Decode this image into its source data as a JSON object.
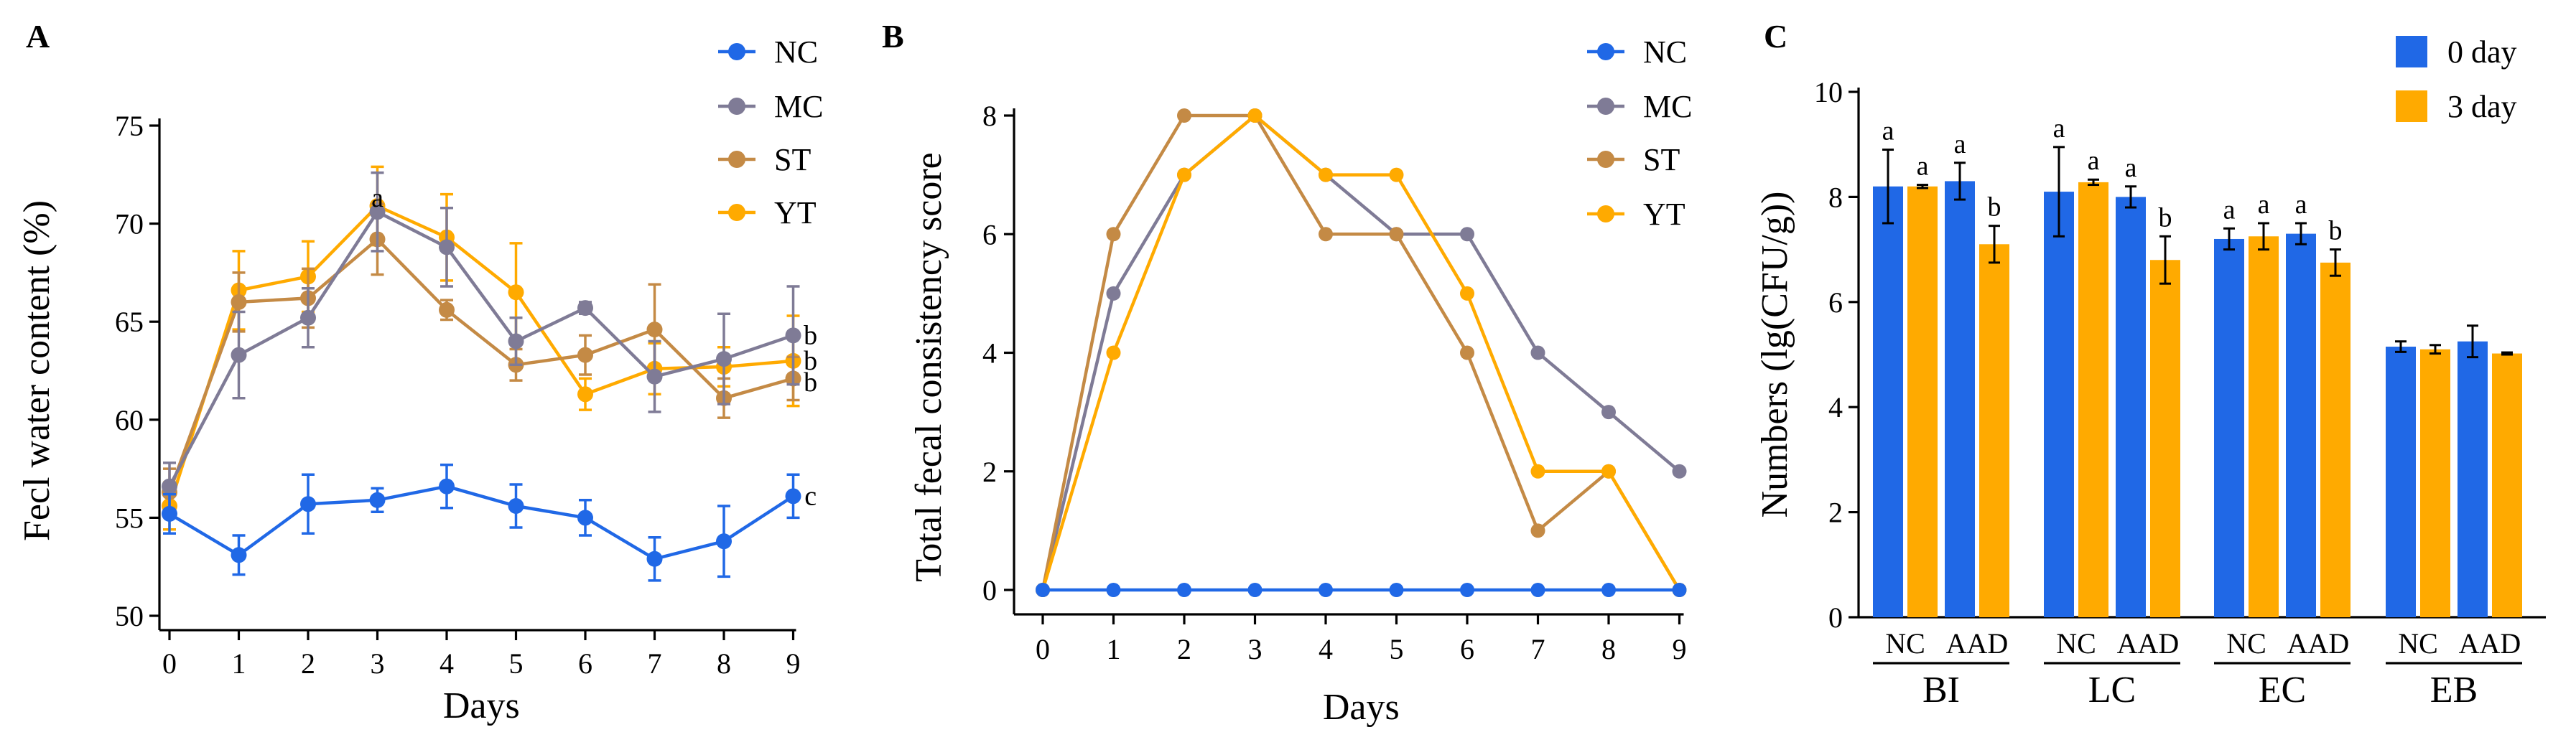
{
  "colors": {
    "NC": "#2068E6",
    "MC": "#7F7B96",
    "ST": "#C48A45",
    "YT": "#FFAA00",
    "bar0": "#2068E6",
    "bar3": "#FFAA00"
  },
  "chart_data": [
    {
      "panel": "A",
      "type": "line",
      "title": "",
      "xlabel": "Days",
      "ylabel": "Fecl water content (%)",
      "xlim": [
        0,
        9
      ],
      "ylim": [
        50,
        75
      ],
      "xticks": [
        0,
        1,
        2,
        3,
        4,
        5,
        6,
        7,
        8,
        9
      ],
      "yticks": [
        50,
        55,
        60,
        65,
        70,
        75
      ],
      "legend": [
        "NC",
        "MC",
        "ST",
        "YT"
      ],
      "series": [
        {
          "name": "YT",
          "color": "#FFAA00",
          "x": [
            0,
            1,
            2,
            3,
            4,
            5,
            6,
            7,
            8,
            9
          ],
          "values": [
            55.6,
            66.6,
            67.3,
            70.9,
            69.3,
            66.5,
            61.3,
            62.6,
            62.7,
            63.0
          ],
          "err": [
            1.2,
            2.0,
            1.8,
            2.0,
            2.2,
            2.5,
            0.8,
            1.3,
            1.0,
            2.3
          ]
        },
        {
          "name": "ST",
          "color": "#C48A45",
          "x": [
            0,
            1,
            2,
            3,
            4,
            5,
            6,
            7,
            8,
            9
          ],
          "values": [
            56.3,
            66.0,
            66.2,
            69.2,
            65.6,
            62.8,
            63.3,
            64.6,
            61.1,
            62.1
          ],
          "err": [
            1.2,
            1.5,
            1.5,
            1.8,
            0.5,
            0.8,
            1.0,
            2.3,
            1.0,
            1.1
          ]
        },
        {
          "name": "MC",
          "color": "#7F7B96",
          "x": [
            0,
            1,
            2,
            3,
            4,
            5,
            6,
            7,
            8,
            9
          ],
          "values": [
            56.6,
            63.3,
            65.2,
            70.6,
            68.8,
            64.0,
            65.7,
            62.2,
            63.1,
            64.3
          ],
          "err": [
            1.2,
            2.2,
            1.5,
            2.0,
            2.0,
            1.2,
            0.3,
            1.8,
            2.3,
            2.5
          ]
        },
        {
          "name": "NC",
          "color": "#2068E6",
          "x": [
            0,
            1,
            2,
            3,
            4,
            5,
            6,
            7,
            8,
            9
          ],
          "values": [
            55.2,
            53.1,
            55.7,
            55.9,
            56.6,
            55.6,
            55.0,
            52.9,
            53.8,
            56.1
          ],
          "err": [
            1.0,
            1.0,
            1.5,
            0.6,
            1.1,
            1.1,
            0.9,
            1.1,
            1.8,
            1.1
          ]
        }
      ],
      "annotations": [
        {
          "text": "a",
          "x": 3,
          "y": 71.3
        },
        {
          "text": "b",
          "x": 9.25,
          "y": 64.3
        },
        {
          "text": "b",
          "x": 9.25,
          "y": 63.0
        },
        {
          "text": "b",
          "x": 9.25,
          "y": 61.9
        },
        {
          "text": "c",
          "x": 9.25,
          "y": 56.1
        }
      ]
    },
    {
      "panel": "B",
      "type": "line",
      "title": "",
      "xlabel": "Days",
      "ylabel": "Total fecal consistency score",
      "xlim": [
        0,
        9
      ],
      "ylim": [
        0,
        8
      ],
      "xticks": [
        0,
        1,
        2,
        3,
        4,
        5,
        6,
        7,
        8,
        9
      ],
      "yticks": [
        0,
        2,
        4,
        6,
        8
      ],
      "legend": [
        "NC",
        "MC",
        "ST",
        "YT"
      ],
      "series": [
        {
          "name": "MC",
          "color": "#7F7B96",
          "x": [
            0,
            1,
            2,
            3,
            4,
            5,
            6,
            7,
            8,
            9
          ],
          "values": [
            0,
            5,
            7,
            8,
            7,
            6,
            6,
            4,
            3,
            2
          ]
        },
        {
          "name": "ST",
          "color": "#C48A45",
          "x": [
            0,
            1,
            2,
            3,
            4,
            5,
            6,
            7,
            8,
            9
          ],
          "values": [
            0,
            6,
            8,
            8,
            6,
            6,
            4,
            1,
            2,
            0
          ]
        },
        {
          "name": "YT",
          "color": "#FFAA00",
          "x": [
            0,
            1,
            2,
            3,
            4,
            5,
            6,
            7,
            8,
            9
          ],
          "values": [
            0,
            4,
            7,
            8,
            7,
            7,
            5,
            2,
            2,
            0
          ]
        },
        {
          "name": "NC",
          "color": "#2068E6",
          "x": [
            0,
            1,
            2,
            3,
            4,
            5,
            6,
            7,
            8,
            9
          ],
          "values": [
            0,
            0,
            0,
            0,
            0,
            0,
            0,
            0,
            0,
            0
          ]
        }
      ]
    },
    {
      "panel": "C",
      "type": "bar",
      "title": "",
      "xlabel": "",
      "ylabel": "Numbers (lg(CFU/g))",
      "ylim": [
        0,
        10
      ],
      "yticks": [
        0,
        2,
        4,
        6,
        8,
        10
      ],
      "legend": [
        "0 day",
        "3 day"
      ],
      "groups": [
        "BI",
        "LC",
        "EC",
        "EB"
      ],
      "subgroups": [
        "NC",
        "AAD"
      ],
      "series": [
        {
          "name": "0 day",
          "color": "#2068E6",
          "values": [
            [
              8.2,
              8.3
            ],
            [
              8.1,
              8.0
            ],
            [
              7.2,
              7.3
            ],
            [
              5.15,
              5.25
            ]
          ],
          "err": [
            [
              0.7,
              0.35
            ],
            [
              0.85,
              0.2
            ],
            [
              0.2,
              0.2
            ],
            [
              0.1,
              0.3
            ]
          ],
          "labels": [
            [
              "a",
              "a"
            ],
            [
              "a",
              "a"
            ],
            [
              "a",
              "a"
            ],
            [
              "",
              ""
            ]
          ]
        },
        {
          "name": "3 day",
          "color": "#FFAA00",
          "values": [
            [
              8.2,
              7.1
            ],
            [
              8.28,
              6.8
            ],
            [
              7.25,
              6.75
            ],
            [
              5.1,
              5.02
            ]
          ],
          "err": [
            [
              0.03,
              0.35
            ],
            [
              0.05,
              0.45
            ],
            [
              0.25,
              0.25
            ],
            [
              0.08,
              0.02
            ]
          ],
          "labels": [
            [
              "a",
              "b"
            ],
            [
              "a",
              "b"
            ],
            [
              "a",
              "b"
            ],
            [
              "",
              ""
            ]
          ]
        }
      ]
    }
  ]
}
